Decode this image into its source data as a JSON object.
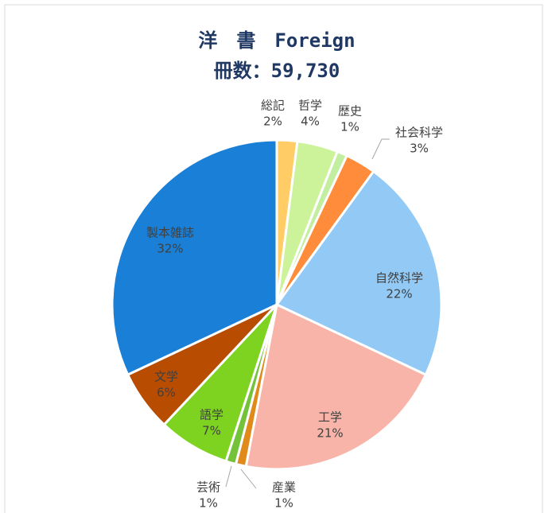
{
  "chart_data": {
    "type": "pie",
    "title": "洋　書　Foreign",
    "subtitle": "冊数：59,730",
    "categories": [
      "総記",
      "哲学",
      "歴史",
      "社会科学",
      "自然科学",
      "工学",
      "産業",
      "芸術",
      "語学",
      "文学",
      "製本雑誌"
    ],
    "values": [
      2,
      4,
      1,
      3,
      22,
      21,
      1,
      1,
      7,
      6,
      32
    ],
    "value_labels": [
      "2%",
      "4%",
      "1%",
      "3%",
      "22%",
      "21%",
      "1%",
      "1%",
      "7%",
      "6%",
      "32%"
    ],
    "colors": [
      "#ffcc66",
      "#ccf29a",
      "#c2eea0",
      "#ff8c3a",
      "#92c9f5",
      "#f8b4a8",
      "#e08a1a",
      "#74c23a",
      "#7ed321",
      "#b84c00",
      "#1a7fd6"
    ]
  }
}
